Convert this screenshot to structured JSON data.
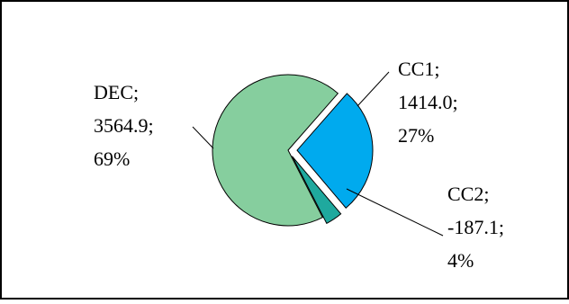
{
  "chart_data": {
    "type": "pie",
    "exploded": true,
    "slices": [
      {
        "name": "CC1",
        "value": 1414.0,
        "percent": "27%",
        "label_lines": [
          "CC1;",
          "1414.0;",
          "27%"
        ],
        "color": "#00AAEE"
      },
      {
        "name": "CC2",
        "value": -187.1,
        "percent": "4%",
        "label_lines": [
          "CC2;",
          "-187.1;",
          "4%"
        ],
        "color": "#1FA99E"
      },
      {
        "name": "DEC",
        "value": 3564.9,
        "percent": "69%",
        "label_lines": [
          "DEC;",
          "3564.9;",
          "69%"
        ],
        "color": "#86CE9E"
      }
    ],
    "legend": "none"
  }
}
